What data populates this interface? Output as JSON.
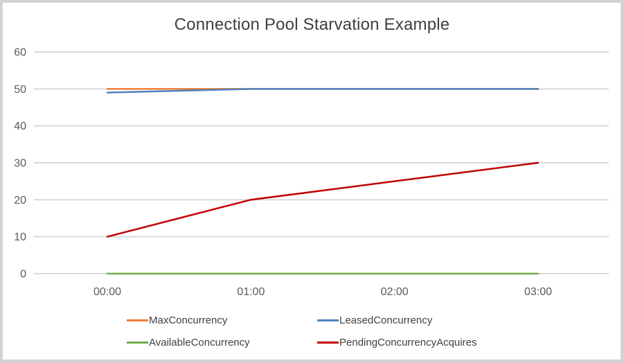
{
  "frame": {
    "border_color": "#d2d2d2",
    "background": "#ffffff"
  },
  "chart_data": {
    "type": "line",
    "title": "Connection Pool Starvation Example",
    "title_color": "#404040",
    "categories": [
      "00:00",
      "01:00",
      "02:00",
      "03:00"
    ],
    "series": [
      {
        "name": "MaxConcurrency",
        "color": "#ED7D31",
        "values": [
          50,
          50,
          50,
          50
        ]
      },
      {
        "name": "LeasedConcurrency",
        "color": "#4E81BD",
        "values": [
          49,
          50,
          50,
          50
        ]
      },
      {
        "name": "AvailableConcurrency",
        "color": "#70AD47",
        "values": [
          0,
          0,
          0,
          0
        ]
      },
      {
        "name": "PendingConcurrencyAcquires",
        "color": "#C00000",
        "values": [
          10,
          20,
          25,
          30
        ]
      }
    ],
    "xlabel": "",
    "ylabel": "",
    "ylim": [
      0,
      60
    ],
    "yticks": [
      0,
      10,
      20,
      30,
      40,
      50,
      60
    ],
    "grid": "horizontal",
    "grid_color": "#D9D9D9",
    "tick_label_color": "#595959",
    "legend_position": "bottom",
    "legend_text_color": "#404040"
  }
}
